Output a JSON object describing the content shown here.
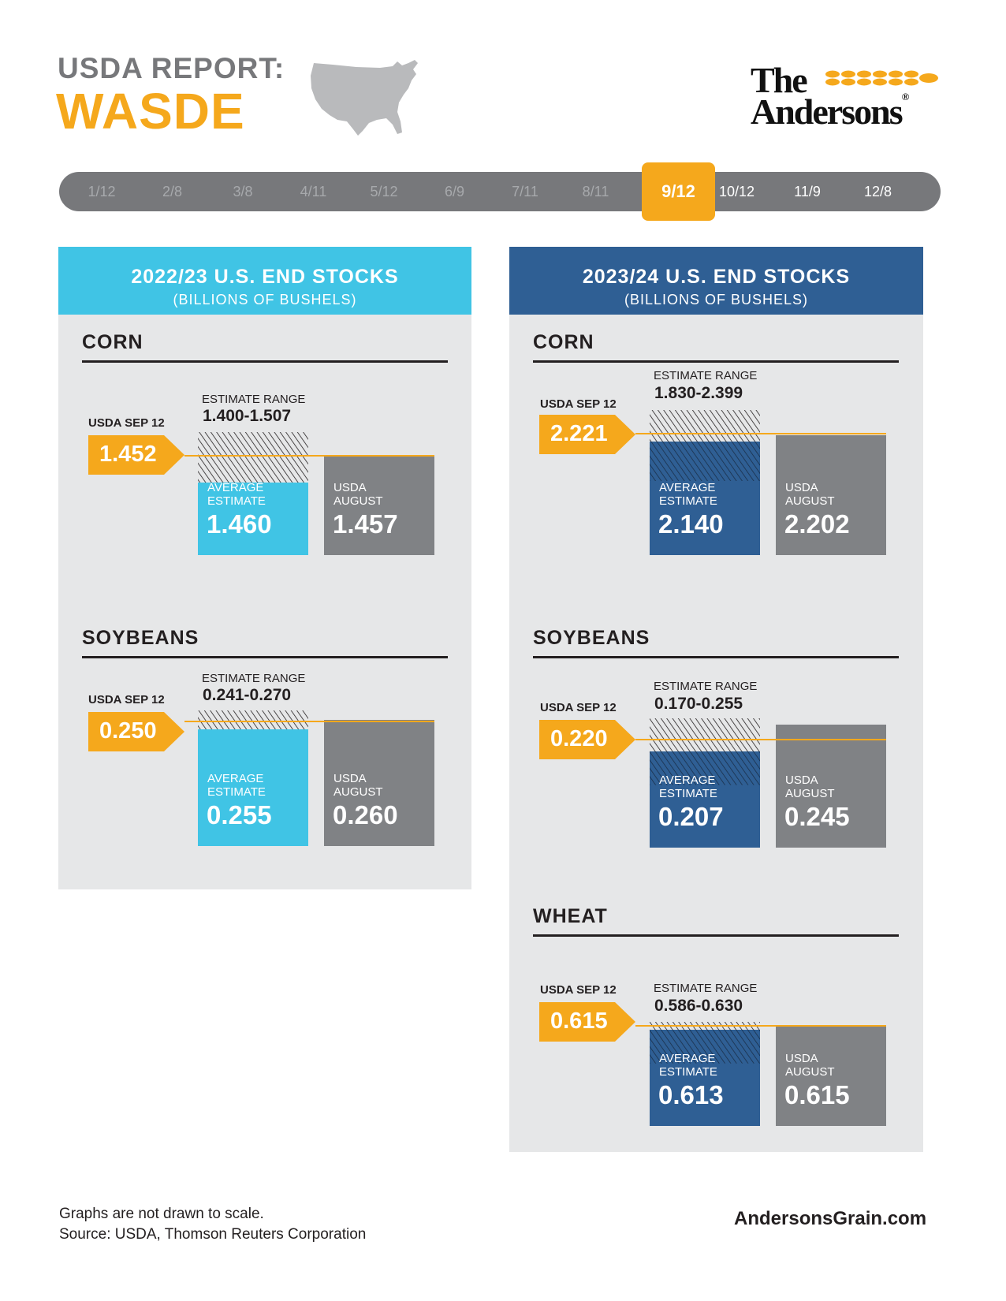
{
  "header": {
    "line1": "USDA REPORT:",
    "line2": "WASDE",
    "map_icon": "us-map-icon",
    "logo_line1": "The",
    "logo_line2": "Andersons",
    "logo_registered": "®",
    "logo_icon": "wheat-icon"
  },
  "timeline": {
    "dates": [
      "1/12",
      "2/8",
      "3/8",
      "4/11",
      "5/12",
      "6/9",
      "7/11",
      "8/11",
      "9/12",
      "10/12",
      "11/9",
      "12/8"
    ],
    "active_index": 8
  },
  "colors": {
    "accent_orange": "#f5a81c",
    "panel_left_head": "#40c4e5",
    "panel_right_head": "#2f5f94",
    "usda_august_gray": "#808285",
    "panel_bg": "#e6e7e8",
    "timeline_gray": "#77787b"
  },
  "labels": {
    "usda_tag": "USDA SEP 12",
    "estimate_range": "ESTIMATE RANGE",
    "avg_line1": "AVERAGE",
    "avg_line2": "ESTIMATE",
    "aug_line1": "USDA",
    "aug_line2": "AUGUST"
  },
  "footer": {
    "note1": "Graphs are not drawn to scale.",
    "note2": "Source: USDA, Thomson Reuters Corporation",
    "url": "AndersonsGrain.com"
  },
  "chart_data": [
    {
      "type": "bar",
      "title": "2022/23 U.S. END STOCKS",
      "subtitle": "(BILLIONS OF BUSHELS)",
      "crops": [
        {
          "name": "CORN",
          "usda_sep12": "1.452",
          "estimate_range": "1.400-1.507",
          "average_estimate": "1.460",
          "usda_august": "1.457"
        },
        {
          "name": "SOYBEANS",
          "usda_sep12": "0.250",
          "estimate_range": "0.241-0.270",
          "average_estimate": "0.255",
          "usda_august": "0.260"
        }
      ]
    },
    {
      "type": "bar",
      "title": "2023/24 U.S. END STOCKS",
      "subtitle": "(BILLIONS OF BUSHELS)",
      "crops": [
        {
          "name": "CORN",
          "usda_sep12": "2.221",
          "estimate_range": "1.830-2.399",
          "average_estimate": "2.140",
          "usda_august": "2.202"
        },
        {
          "name": "SOYBEANS",
          "usda_sep12": "0.220",
          "estimate_range": "0.170-0.255",
          "average_estimate": "0.207",
          "usda_august": "0.245"
        },
        {
          "name": "WHEAT",
          "usda_sep12": "0.615",
          "estimate_range": "0.586-0.630",
          "average_estimate": "0.613",
          "usda_august": "0.615"
        }
      ]
    }
  ]
}
